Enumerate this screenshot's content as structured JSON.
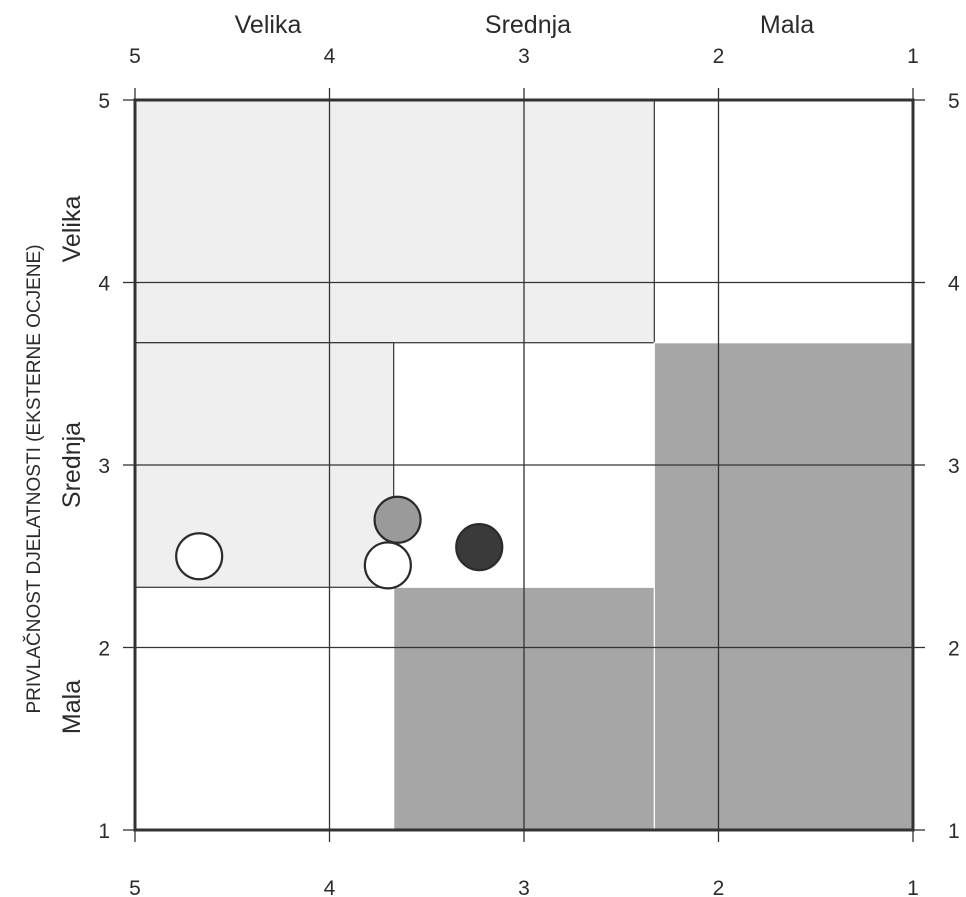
{
  "chart_data": {
    "type": "scatter",
    "title": "",
    "xlabel": "",
    "ylabel": "PRIVLAČNOST DJELATNOSTI (EKSTERNE OCJENE)",
    "xlim": [
      5,
      1
    ],
    "ylim": [
      1,
      5
    ],
    "x_ticks": [
      "5",
      "4",
      "3",
      "2",
      "1"
    ],
    "y_ticks": [
      "5",
      "4",
      "3",
      "2",
      "1"
    ],
    "top_bands": [
      "Velika",
      "Srednja",
      "Mala"
    ],
    "left_bands": [
      "Velika",
      "Srednja",
      "Mala"
    ],
    "grid": true,
    "zones": [
      {
        "name": "light",
        "color": "#efefef",
        "x_from": 5,
        "x_to": 2.33,
        "y_from": 3.67,
        "y_to": 5
      },
      {
        "name": "light",
        "color": "#efefef",
        "x_from": 5,
        "x_to": 3.67,
        "y_from": 2.33,
        "y_to": 3.67
      },
      {
        "name": "dark",
        "color": "#a6a6a6",
        "x_from": 2.33,
        "x_to": 1,
        "y_from": 1,
        "y_to": 3.67
      },
      {
        "name": "dark",
        "color": "#a6a6a6",
        "x_from": 3.67,
        "x_to": 2.33,
        "y_from": 1,
        "y_to": 2.33
      }
    ],
    "points": [
      {
        "x": 4.67,
        "y": 2.5,
        "fill": "#ffffff"
      },
      {
        "x": 3.65,
        "y": 2.7,
        "fill": "#9a9a9a"
      },
      {
        "x": 3.7,
        "y": 2.45,
        "fill": "#ffffff"
      },
      {
        "x": 3.23,
        "y": 2.55,
        "fill": "#3a3a3a"
      }
    ]
  }
}
